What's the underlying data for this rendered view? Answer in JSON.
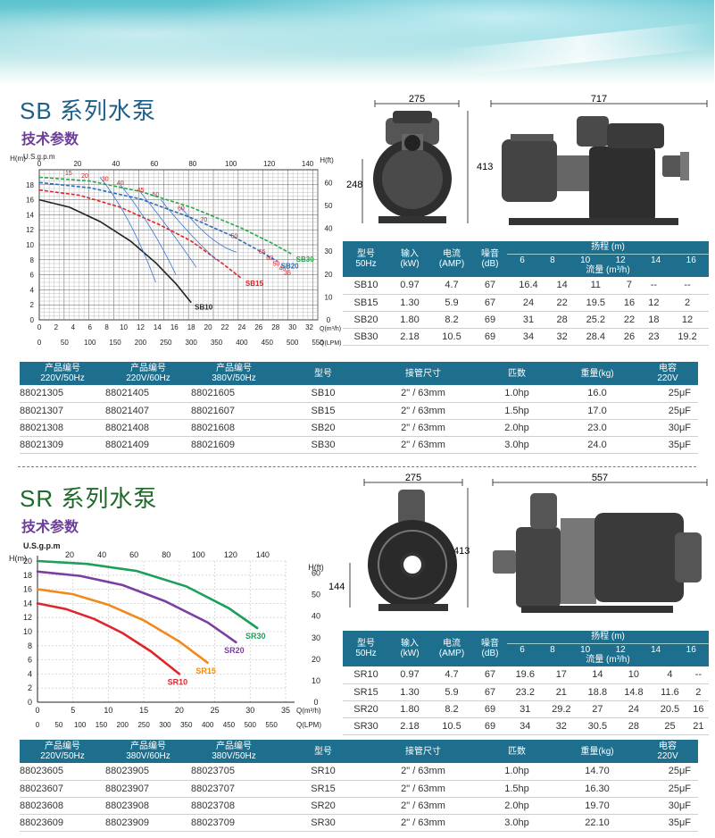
{
  "sb": {
    "title": "SB 系列水泵",
    "subtitle": "技术参数",
    "dims": {
      "front_width": "275",
      "front_height": "413",
      "front_base": "248",
      "side_length": "717"
    },
    "spec_table": {
      "headers": {
        "model": "型号\n50Hz",
        "input": "输入\n(kW)",
        "current": "电流\n(AMP)",
        "noise": "噪音\n(dB)",
        "head": "扬程 (m)",
        "flow": "流量 (m³/h)"
      },
      "head_values": [
        "6",
        "8",
        "10",
        "12",
        "14",
        "16"
      ],
      "rows": [
        {
          "model": "SB10",
          "input": "0.97",
          "current": "4.7",
          "noise": "67",
          "flows": [
            "16.4",
            "14",
            "11",
            "7",
            "--",
            "--"
          ]
        },
        {
          "model": "SB15",
          "input": "1.30",
          "current": "5.9",
          "noise": "67",
          "flows": [
            "24",
            "22",
            "19.5",
            "16",
            "12",
            "2"
          ]
        },
        {
          "model": "SB20",
          "input": "1.80",
          "current": "8.2",
          "noise": "69",
          "flows": [
            "31",
            "28",
            "25.2",
            "22",
            "18",
            "12"
          ]
        },
        {
          "model": "SB30",
          "input": "2.18",
          "current": "10.5",
          "noise": "69",
          "flows": [
            "34",
            "32",
            "28.4",
            "26",
            "23",
            "19.2"
          ]
        }
      ]
    },
    "product_table": {
      "headers": [
        "产品编号\n220V/50Hz",
        "产品编号\n220V/60Hz",
        "产品编号\n380V/50Hz",
        "型号",
        "接管尺寸",
        "匹数",
        "重量(kg)",
        "电容\n220V"
      ],
      "rows": [
        [
          "88021305",
          "88021405",
          "88021605",
          "SB10",
          "2\" / 63mm",
          "1.0hp",
          "16.0",
          "25μF"
        ],
        [
          "88021307",
          "88021407",
          "88021607",
          "SB15",
          "2\" / 63mm",
          "1.5hp",
          "17.0",
          "25μF"
        ],
        [
          "88021308",
          "88021408",
          "88021608",
          "SB20",
          "2\" / 63mm",
          "2.0hp",
          "23.0",
          "30μF"
        ],
        [
          "88021309",
          "88021409",
          "88021609",
          "SB30",
          "2\" / 63mm",
          "3.0hp",
          "24.0",
          "35μF"
        ]
      ]
    }
  },
  "sr": {
    "title": "SR 系列水泵",
    "subtitle": "技术参数",
    "dims": {
      "front_width": "275",
      "front_height": "413",
      "front_base": "144",
      "side_length": "557"
    },
    "spec_table": {
      "headers": {
        "model": "型号\n50Hz",
        "input": "输入\n(kW)",
        "current": "电流\n(AMP)",
        "noise": "噪音\n(dB)",
        "head": "扬程 (m)",
        "flow": "流量 (m³/h)"
      },
      "head_values": [
        "6",
        "8",
        "10",
        "12",
        "14",
        "16"
      ],
      "rows": [
        {
          "model": "SR10",
          "input": "0.97",
          "current": "4.7",
          "noise": "67",
          "flows": [
            "19.6",
            "17",
            "14",
            "10",
            "4",
            "--"
          ]
        },
        {
          "model": "SR15",
          "input": "1.30",
          "current": "5.9",
          "noise": "67",
          "flows": [
            "23.2",
            "21",
            "18.8",
            "14.8",
            "11.6",
            "2"
          ]
        },
        {
          "model": "SR20",
          "input": "1.80",
          "current": "8.2",
          "noise": "69",
          "flows": [
            "31",
            "29.2",
            "27",
            "24",
            "20.5",
            "16"
          ]
        },
        {
          "model": "SR30",
          "input": "2.18",
          "current": "10.5",
          "noise": "69",
          "flows": [
            "34",
            "32",
            "30.5",
            "28",
            "25",
            "21"
          ]
        }
      ]
    },
    "product_table": {
      "headers": [
        "产品编号\n220V/50Hz",
        "产品编号\n380V/60Hz",
        "产品编号\n380V/50Hz",
        "型号",
        "接管尺寸",
        "匹数",
        "重量(kg)",
        "电容\n220V"
      ],
      "rows": [
        [
          "88023605",
          "88023905",
          "88023705",
          "SR10",
          "2\" / 63mm",
          "1.0hp",
          "14.70",
          "25μF"
        ],
        [
          "88023607",
          "88023907",
          "88023707",
          "SR15",
          "2\" / 63mm",
          "1.5hp",
          "16.30",
          "25μF"
        ],
        [
          "88023608",
          "88023908",
          "88023708",
          "SR20",
          "2\" / 63mm",
          "2.0hp",
          "19.70",
          "30μF"
        ],
        [
          "88023609",
          "88023909",
          "88023709",
          "SR30",
          "2\" / 63mm",
          "3.0hp",
          "22.10",
          "35μF"
        ]
      ]
    }
  },
  "chart_data": [
    {
      "type": "line",
      "id": "sb-curves",
      "title": "",
      "xlabel": "Q(LPM)",
      "x2label": "Q(m³/h)",
      "xtoplabel": "U.S.g.p.m",
      "ylabel": "H(m)",
      "y2label": "H(ft)",
      "xlim": [
        0,
        550
      ],
      "ylim": [
        0,
        20
      ],
      "xticks": [
        0,
        50,
        100,
        150,
        200,
        250,
        300,
        350,
        400,
        450,
        500,
        550
      ],
      "x2ticks": [
        0,
        2,
        4,
        6,
        8,
        10,
        12,
        14,
        16,
        18,
        20,
        22,
        24,
        26,
        28,
        30,
        32
      ],
      "xtopticks": [
        0,
        20,
        40,
        60,
        80,
        100,
        120,
        140
      ],
      "yticks": [
        0,
        2,
        4,
        6,
        8,
        10,
        12,
        14,
        16,
        18
      ],
      "y2ticks": [
        0,
        10,
        20,
        30,
        40,
        50,
        60
      ],
      "grid": true,
      "series": [
        {
          "name": "SB10",
          "color": "#222222",
          "x": [
            0,
            60,
            120,
            180,
            230,
            270,
            300
          ],
          "y": [
            16.0,
            15.0,
            13.1,
            10.5,
            7.6,
            4.8,
            2.3
          ]
        },
        {
          "name": "SB15",
          "color": "#e0262b",
          "x": [
            0,
            80,
            160,
            240,
            300,
            360,
            400
          ],
          "y": [
            17.3,
            16.6,
            15.0,
            12.6,
            10.5,
            7.6,
            5.5
          ]
        },
        {
          "name": "SB20",
          "color": "#2a6fc0",
          "x": [
            0,
            100,
            200,
            300,
            380,
            440,
            470
          ],
          "y": [
            18.3,
            17.6,
            16.1,
            13.6,
            11.2,
            9.0,
            7.8
          ]
        },
        {
          "name": "SB30",
          "color": "#2aa84a",
          "x": [
            0,
            100,
            200,
            300,
            400,
            460,
            500
          ],
          "y": [
            19.0,
            18.5,
            17.1,
            15.0,
            12.2,
            10.2,
            8.7
          ]
        }
      ],
      "annotations": [
        "15",
        "20",
        "30",
        "40",
        "45",
        "50",
        "60",
        "70",
        "50",
        "65",
        "60",
        "50",
        "45",
        "35"
      ]
    },
    {
      "type": "line",
      "id": "sr-curves",
      "title": "",
      "xlabel": "Q(LPM)",
      "x2label": "Q(m³/h)",
      "xtoplabel": "U.S.g.p.m",
      "ylabel": "H(m)",
      "y2label": "H(ft)",
      "xlim": [
        0,
        35
      ],
      "ylim": [
        0,
        20
      ],
      "xticks": [
        0,
        5,
        10,
        15,
        20,
        25,
        30,
        35
      ],
      "xlpm_ticks": [
        0,
        50,
        100,
        150,
        200,
        250,
        300,
        350,
        400,
        450,
        500,
        550
      ],
      "xtopticks": [
        20,
        40,
        60,
        80,
        100,
        120,
        140
      ],
      "yticks": [
        0,
        2,
        4,
        6,
        8,
        10,
        12,
        14,
        16,
        18,
        20
      ],
      "y2ticks": [
        0,
        10,
        20,
        30,
        40,
        50,
        60
      ],
      "grid": true,
      "series": [
        {
          "name": "SR10",
          "color": "#e0262b",
          "x": [
            0,
            4,
            8,
            12,
            16,
            20
          ],
          "y": [
            14.0,
            13.2,
            11.8,
            9.8,
            7.2,
            4.0
          ]
        },
        {
          "name": "SR15",
          "color": "#f08a1c",
          "x": [
            0,
            5,
            10,
            15,
            20,
            24
          ],
          "y": [
            16.0,
            15.3,
            13.8,
            11.6,
            8.6,
            5.6
          ]
        },
        {
          "name": "SR20",
          "color": "#7a3fa0",
          "x": [
            0,
            6,
            12,
            18,
            24,
            28
          ],
          "y": [
            18.5,
            17.9,
            16.6,
            14.3,
            11.3,
            8.5
          ]
        },
        {
          "name": "SR30",
          "color": "#1aa05a",
          "x": [
            0,
            7,
            14,
            21,
            27,
            31
          ],
          "y": [
            20.0,
            19.6,
            18.6,
            16.4,
            13.3,
            10.5
          ]
        }
      ]
    }
  ]
}
